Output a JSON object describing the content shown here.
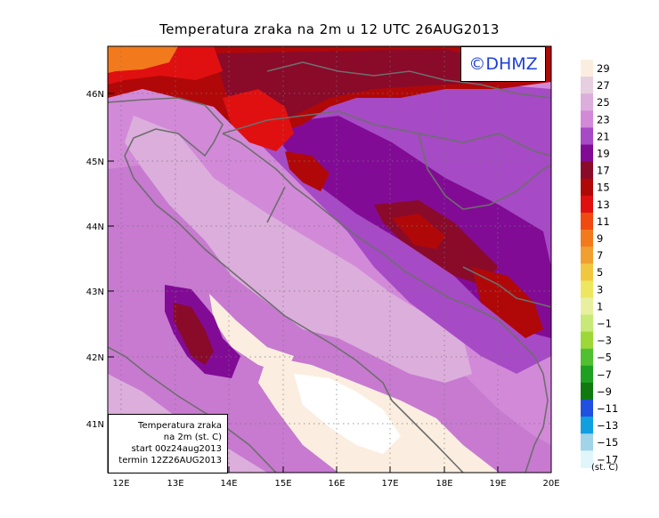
{
  "title": "Temperatura zraka na 2m u 12 UTC 26AUG2013",
  "logo_text": "©DHMZ",
  "info_box": {
    "line1": "Temperatura zraka",
    "line2": "na 2m (st. C)",
    "line3": "start 00z24aug2013",
    "line4": "termin 12Z26AUG2013"
  },
  "lon_ticks": [
    "12E",
    "13E",
    "14E",
    "15E",
    "16E",
    "17E",
    "18E",
    "19E",
    "20E"
  ],
  "lat_ticks": [
    "41N",
    "42N",
    "43N",
    "44N",
    "45N",
    "46N"
  ],
  "colorbar": {
    "unit": "(st. C)",
    "labels": [
      "29",
      "27",
      "25",
      "23",
      "21",
      "19",
      "17",
      "15",
      "13",
      "11",
      "9",
      "7",
      "5",
      "3",
      "1",
      "−1",
      "−3",
      "−5",
      "−7",
      "−9",
      "−11",
      "−13",
      "−15",
      "−17"
    ],
    "colors": [
      "#fbeee0",
      "#e6cfe0",
      "#dcaedc",
      "#d28ad8",
      "#a64ac6",
      "#820b96",
      "#8a0a2a",
      "#b00808",
      "#e01010",
      "#f04a10",
      "#f27a1c",
      "#f0a030",
      "#f0c840",
      "#eee660",
      "#e8f0a0",
      "#c8e878",
      "#9ed838",
      "#50c030",
      "#20a020",
      "#107a10",
      "#2050e0",
      "#10a0e0",
      "#a0d4e8",
      "#e0f6fa"
    ]
  },
  "map_colors": {
    "sea_light": "#fbeee0",
    "sea_white": "#ffffff",
    "low": "#dcaedc",
    "mid": "#d28ad8",
    "high": "#a64ac6",
    "hot1": "#820b96",
    "hot2": "#8a0a2a",
    "hot3": "#b00808",
    "hot4": "#e01010",
    "hot5": "#f04a10",
    "hot6": "#f27a1c",
    "coast": "#6e6e6e"
  }
}
